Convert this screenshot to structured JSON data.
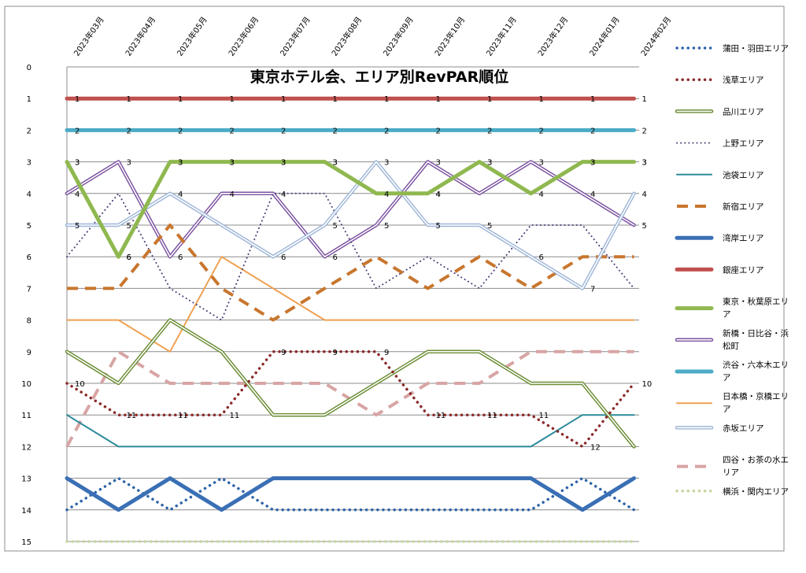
{
  "chart_data": {
    "type": "line",
    "title": "東京ホテル会、エリア別RevPAR順位",
    "xlabel": "",
    "ylabel": "",
    "ylim": [
      0,
      15
    ],
    "y_inverted": true,
    "grid": true,
    "legend_position": "right",
    "x": [
      "2023年03月",
      "2023年04月",
      "2023年05月",
      "2023年06月",
      "2023年07月",
      "2023年08月",
      "2023年09月",
      "2023年10月",
      "2023年11月",
      "2023年12月",
      "2024年01月",
      "2024年02月"
    ],
    "y_ticks": [
      0,
      1,
      2,
      3,
      4,
      5,
      6,
      7,
      8,
      9,
      10,
      11,
      12,
      13,
      14,
      15
    ],
    "series": [
      {
        "name": "蒲田・羽田エリア",
        "values": [
          14,
          13,
          14,
          13,
          14,
          14,
          14,
          14,
          14,
          14,
          13,
          14
        ],
        "color": "#2e64a8",
        "style": "dotted",
        "labels": false
      },
      {
        "name": "浅草エリア",
        "values": [
          10,
          11,
          11,
          11,
          9,
          9,
          9,
          11,
          11,
          11,
          12,
          10
        ],
        "color": "#8b2a2a",
        "style": "dotted",
        "labels": true
      },
      {
        "name": "品川エリア",
        "values": [
          9,
          10,
          8,
          9,
          11,
          11,
          10,
          9,
          9,
          10,
          10,
          12
        ],
        "color": "#6b8c34",
        "style": "double",
        "labels": false
      },
      {
        "name": "上野エリア",
        "values": [
          6,
          4,
          7,
          8,
          4,
          4,
          7,
          6,
          7,
          5,
          5,
          7
        ],
        "color": "#4a3f78",
        "style": "dotted-thin",
        "labels": false
      },
      {
        "name": "池袋エリア",
        "values": [
          11,
          12,
          12,
          12,
          12,
          12,
          12,
          12,
          12,
          12,
          11,
          11
        ],
        "color": "#2b8a9a",
        "style": "solid-thin",
        "labels": false
      },
      {
        "name": "新宿エリア",
        "values": [
          7,
          7,
          5,
          7,
          8,
          7,
          6,
          7,
          6,
          7,
          6,
          6
        ],
        "color": "#c8762e",
        "style": "dashed",
        "labels": false
      },
      {
        "name": "湾岸エリア",
        "values": [
          13,
          14,
          13,
          14,
          13,
          13,
          13,
          13,
          13,
          13,
          14,
          13
        ],
        "color": "#3a6fb5",
        "style": "solid-thick",
        "labels": false
      },
      {
        "name": "銀座エリア",
        "values": [
          1,
          1,
          1,
          1,
          1,
          1,
          1,
          1,
          1,
          1,
          1,
          1
        ],
        "color": "#c0504d",
        "style": "solid-thick",
        "labels": true
      },
      {
        "name": "東京・秋葉原エリア",
        "values": [
          3,
          6,
          3,
          3,
          3,
          3,
          4,
          4,
          3,
          4,
          3,
          3
        ],
        "color": "#8fb84f",
        "style": "solid-thick",
        "labels": true
      },
      {
        "name": "新橋・日比谷・浜松町",
        "values": [
          4,
          3,
          6,
          4,
          4,
          6,
          5,
          3,
          4,
          3,
          4,
          5
        ],
        "color": "#7a52a0",
        "style": "double",
        "labels": false
      },
      {
        "name": "渋谷・六本木エリア",
        "values": [
          2,
          2,
          2,
          2,
          2,
          2,
          2,
          2,
          2,
          2,
          2,
          2
        ],
        "color": "#4bacc6",
        "style": "solid-thick",
        "labels": true
      },
      {
        "name": "日本橋・京橋エリア",
        "values": [
          8,
          8,
          9,
          6,
          7,
          8,
          8,
          8,
          8,
          8,
          8,
          8
        ],
        "color": "#f0a050",
        "style": "solid-thin",
        "labels": false
      },
      {
        "name": "赤坂エリア",
        "values": [
          5,
          5,
          4,
          5,
          6,
          5,
          3,
          5,
          5,
          6,
          7,
          4
        ],
        "color": "#9fb6d8",
        "style": "double",
        "labels": false
      },
      {
        "name": "四谷・お茶の水エリア",
        "values": [
          12,
          9,
          10,
          10,
          10,
          10,
          11,
          10,
          10,
          9,
          9,
          9
        ],
        "color": "#d8a4a4",
        "style": "dashed",
        "labels": false
      },
      {
        "name": "横浜・関内エリア",
        "values": [
          15,
          15,
          15,
          15,
          15,
          15,
          15,
          15,
          15,
          15,
          15,
          15
        ],
        "color": "#c3d69b",
        "style": "dotted",
        "labels": false
      }
    ],
    "annotations": [
      {
        "x": "2023年03月",
        "y": 3,
        "text": "3"
      },
      {
        "x": "2023年04月",
        "y": 3,
        "text": "3"
      },
      {
        "x": "2023年05月",
        "y": 3,
        "text": "3"
      },
      {
        "x": "2023年06月",
        "y": 3,
        "text": "3"
      },
      {
        "x": "2023年07月",
        "y": 3,
        "text": "3"
      },
      {
        "x": "2023年08月",
        "y": 3,
        "text": "3"
      },
      {
        "x": "2023年09月",
        "y": 3,
        "text": "3"
      },
      {
        "x": "2023年10月",
        "y": 3,
        "text": "3"
      },
      {
        "x": "2023年11月",
        "y": 3,
        "text": "3"
      },
      {
        "x": "2023年12月",
        "y": 3,
        "text": "3"
      },
      {
        "x": "2024年01月",
        "y": 3,
        "text": "3"
      },
      {
        "x": "2024年02月",
        "y": 3,
        "text": "3"
      },
      {
        "x": "2023年03月",
        "y": 4,
        "text": "4"
      },
      {
        "x": "2023年05月",
        "y": 4,
        "text": "4"
      },
      {
        "x": "2023年06月",
        "y": 4,
        "text": "4"
      },
      {
        "x": "2023年07月",
        "y": 4,
        "text": "4"
      },
      {
        "x": "2023年10月",
        "y": 4,
        "text": "4"
      },
      {
        "x": "2024年01月",
        "y": 4,
        "text": "4"
      },
      {
        "x": "2024年02月",
        "y": 4,
        "text": "4"
      },
      {
        "x": "2023年03月",
        "y": 5,
        "text": "5"
      },
      {
        "x": "2023年04月",
        "y": 5,
        "text": "5"
      },
      {
        "x": "2023年08月",
        "y": 5,
        "text": "5"
      },
      {
        "x": "2023年09月",
        "y": 5,
        "text": "5"
      },
      {
        "x": "2023年10月",
        "y": 5,
        "text": "5"
      },
      {
        "x": "2023年11月",
        "y": 5,
        "text": "5"
      },
      {
        "x": "2024年02月",
        "y": 5,
        "text": "5"
      },
      {
        "x": "2023年04月",
        "y": 6,
        "text": "6"
      },
      {
        "x": "2023年05月",
        "y": 6,
        "text": "6"
      },
      {
        "x": "2023年07月",
        "y": 6,
        "text": "6"
      },
      {
        "x": "2023年08月",
        "y": 6,
        "text": "6"
      },
      {
        "x": "2023年12月",
        "y": 6,
        "text": "6"
      },
      {
        "x": "2024年01月",
        "y": 7,
        "text": "7"
      }
    ]
  }
}
